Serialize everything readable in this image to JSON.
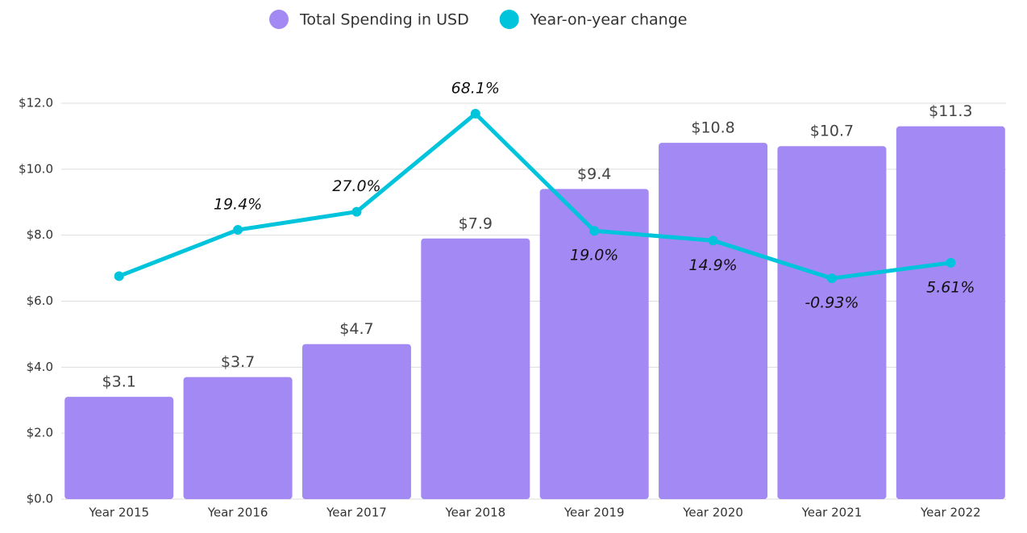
{
  "chart_data": {
    "type": "bar-line",
    "categories": [
      "Year 2015",
      "Year 2016",
      "Year 2017",
      "Year 2018",
      "Year 2019",
      "Year 2020",
      "Year 2021",
      "Year 2022"
    ],
    "series": [
      {
        "name": "Total Spending in USD",
        "type": "bar",
        "color": "#a389f4",
        "values": [
          3.1,
          3.7,
          4.7,
          7.9,
          9.4,
          10.8,
          10.7,
          11.3
        ],
        "value_labels": [
          "$3.1",
          "$3.7",
          "$4.7",
          "$7.9",
          "$9.4",
          "$10.8",
          "$10.7",
          "$11.3"
        ]
      },
      {
        "name": "Year-on-year change",
        "type": "line",
        "axis": "y2",
        "color": "#00c4dc",
        "values": [
          0,
          19.4,
          27.0,
          68.1,
          19.0,
          14.9,
          -0.93,
          5.61
        ],
        "value_labels": [
          null,
          "19.4%",
          "27.0%",
          "68.1%",
          "19.0%",
          "14.9%",
          "-0.93%",
          "5.61%"
        ]
      }
    ],
    "ylim": [
      0,
      12
    ],
    "yticks": [
      {
        "value": 0,
        "label": "$0.0"
      },
      {
        "value": 2,
        "label": "$2.0"
      },
      {
        "value": 4,
        "label": "$4.0"
      },
      {
        "value": 6,
        "label": "$6.0"
      },
      {
        "value": 8,
        "label": "$8.0"
      },
      {
        "value": 10,
        "label": "$10.0"
      },
      {
        "value": 12,
        "label": "$12.0"
      }
    ],
    "y2lim": [
      -93.5,
      72.5
    ],
    "grid": true,
    "legend": "top"
  }
}
